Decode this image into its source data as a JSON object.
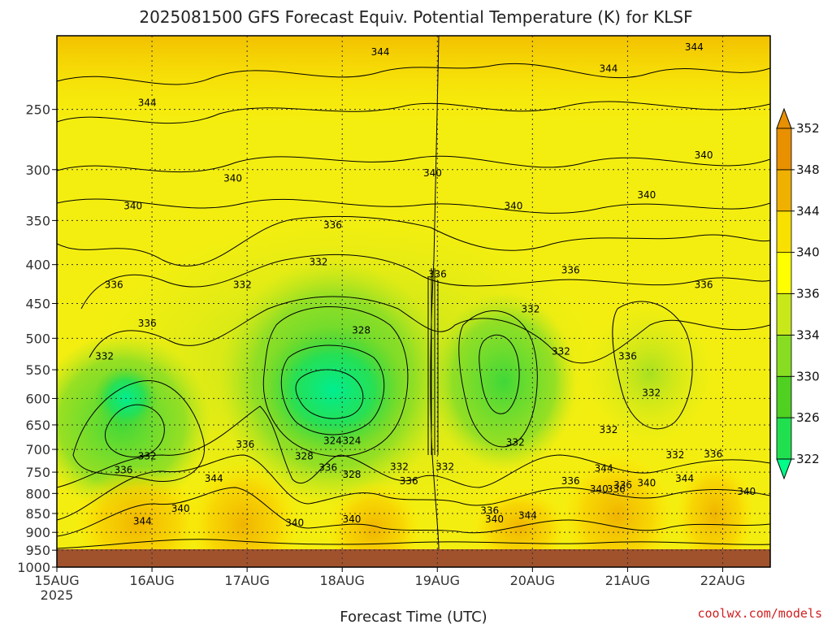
{
  "chart_data": {
    "type": "heatmap",
    "title": "2025081500 GFS Forecast Equiv. Potential Temperature (K) for KLSF",
    "xlabel": "Forecast Time (UTC)",
    "x_ticks": [
      "15AUG",
      "16AUG",
      "17AUG",
      "18AUG",
      "19AUG",
      "20AUG",
      "21AUG",
      "22AUG"
    ],
    "x_year_label": "2025",
    "x_range": [
      0,
      7.5
    ],
    "y_ticks": [
      250,
      300,
      350,
      400,
      450,
      500,
      550,
      600,
      650,
      700,
      750,
      800,
      850,
      900,
      950,
      1000
    ],
    "y_range": [
      200,
      1000
    ],
    "y_scale": "log",
    "grid": true,
    "colorbar": {
      "levels": [
        322,
        326,
        330,
        334,
        336,
        340,
        344,
        348,
        352
      ],
      "colors": [
        "#00ff88",
        "#20e050",
        "#50d020",
        "#88dd22",
        "#c8e81a",
        "#ffff00",
        "#f8e000",
        "#f0b000",
        "#e89000"
      ],
      "placement": "right"
    },
    "contour_labels": [
      {
        "text": "344",
        "day": 3.4,
        "p": 210
      },
      {
        "text": "344",
        "day": 0.95,
        "p": 245
      },
      {
        "text": "344",
        "day": 5.8,
        "p": 221
      },
      {
        "text": "344",
        "day": 6.7,
        "p": 207
      },
      {
        "text": "340",
        "day": 1.85,
        "p": 308
      },
      {
        "text": "340",
        "day": 3.95,
        "p": 303
      },
      {
        "text": "340",
        "day": 0.8,
        "p": 335
      },
      {
        "text": "340",
        "day": 4.8,
        "p": 335
      },
      {
        "text": "340",
        "day": 6.2,
        "p": 324
      },
      {
        "text": "340",
        "day": 6.8,
        "p": 287
      },
      {
        "text": "336",
        "day": 2.9,
        "p": 355
      },
      {
        "text": "336",
        "day": 0.6,
        "p": 425
      },
      {
        "text": "336",
        "day": 0.95,
        "p": 478
      },
      {
        "text": "336",
        "day": 4.0,
        "p": 412
      },
      {
        "text": "336",
        "day": 5.4,
        "p": 407
      },
      {
        "text": "336",
        "day": 6.8,
        "p": 425
      },
      {
        "text": "336",
        "day": 6.0,
        "p": 528
      },
      {
        "text": "336",
        "day": 1.98,
        "p": 690
      },
      {
        "text": "336",
        "day": 0.7,
        "p": 745
      },
      {
        "text": "336",
        "day": 2.85,
        "p": 740
      },
      {
        "text": "336",
        "day": 3.7,
        "p": 770
      },
      {
        "text": "336",
        "day": 5.4,
        "p": 770
      },
      {
        "text": "336",
        "day": 4.55,
        "p": 843
      },
      {
        "text": "336",
        "day": 5.95,
        "p": 780
      },
      {
        "text": "336",
        "day": 6.9,
        "p": 710
      },
      {
        "text": "332",
        "day": 1.95,
        "p": 425
      },
      {
        "text": "332",
        "day": 2.75,
        "p": 397
      },
      {
        "text": "332",
        "day": 4.98,
        "p": 458
      },
      {
        "text": "332",
        "day": 0.5,
        "p": 528
      },
      {
        "text": "332",
        "day": 5.3,
        "p": 520
      },
      {
        "text": "332",
        "day": 6.25,
        "p": 590
      },
      {
        "text": "332",
        "day": 5.8,
        "p": 660
      },
      {
        "text": "332",
        "day": 4.82,
        "p": 685
      },
      {
        "text": "332",
        "day": 0.95,
        "p": 715
      },
      {
        "text": "332",
        "day": 3.6,
        "p": 738
      },
      {
        "text": "332",
        "day": 4.08,
        "p": 738
      },
      {
        "text": "332",
        "day": 6.5,
        "p": 712
      },
      {
        "text": "328",
        "day": 3.2,
        "p": 488
      },
      {
        "text": "328",
        "day": 2.6,
        "p": 715
      },
      {
        "text": "328",
        "day": 3.1,
        "p": 755
      },
      {
        "text": "324",
        "day": 2.9,
        "p": 682
      },
      {
        "text": "324",
        "day": 3.1,
        "p": 682
      },
      {
        "text": "344",
        "day": 1.65,
        "p": 765
      },
      {
        "text": "340",
        "day": 1.3,
        "p": 838
      },
      {
        "text": "344",
        "day": 0.9,
        "p": 870
      },
      {
        "text": "340",
        "day": 2.5,
        "p": 875
      },
      {
        "text": "340",
        "day": 3.1,
        "p": 865
      },
      {
        "text": "340",
        "day": 4.6,
        "p": 865
      },
      {
        "text": "344",
        "day": 4.95,
        "p": 855
      },
      {
        "text": "344",
        "day": 5.75,
        "p": 742
      },
      {
        "text": "340",
        "day": 5.7,
        "p": 790
      },
      {
        "text": "336",
        "day": 5.88,
        "p": 790
      },
      {
        "text": "340",
        "day": 6.2,
        "p": 775
      },
      {
        "text": "344",
        "day": 6.6,
        "p": 765
      },
      {
        "text": "340",
        "day": 7.25,
        "p": 795
      }
    ]
  },
  "credit": "coolwx.com/models"
}
